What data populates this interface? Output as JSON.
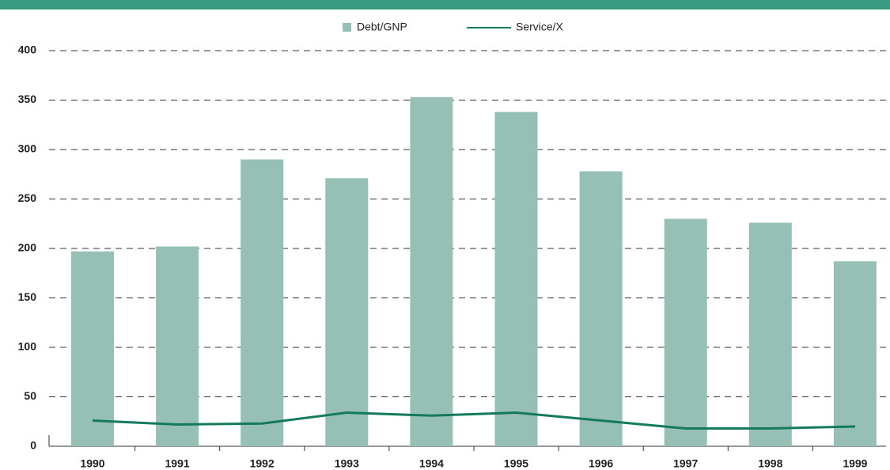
{
  "chart_data": {
    "type": "bar_line",
    "categories": [
      "1990",
      "1991",
      "1992",
      "1993",
      "1994",
      "1995",
      "1996",
      "1997",
      "1998",
      "1999"
    ],
    "series": [
      {
        "name": "Debt/GNP",
        "type": "bar",
        "color": "#96c0b5",
        "values": [
          197,
          202,
          290,
          271,
          353,
          338,
          278,
          230,
          226,
          187
        ]
      },
      {
        "name": "Service/X",
        "type": "line",
        "color": "#137a5e",
        "values": [
          26,
          22,
          23,
          34,
          31,
          34,
          26,
          18,
          18,
          20
        ]
      }
    ],
    "ylim": [
      0,
      400
    ],
    "yticks": [
      0,
      50,
      100,
      150,
      200,
      250,
      300,
      350,
      400
    ],
    "grid": true
  }
}
